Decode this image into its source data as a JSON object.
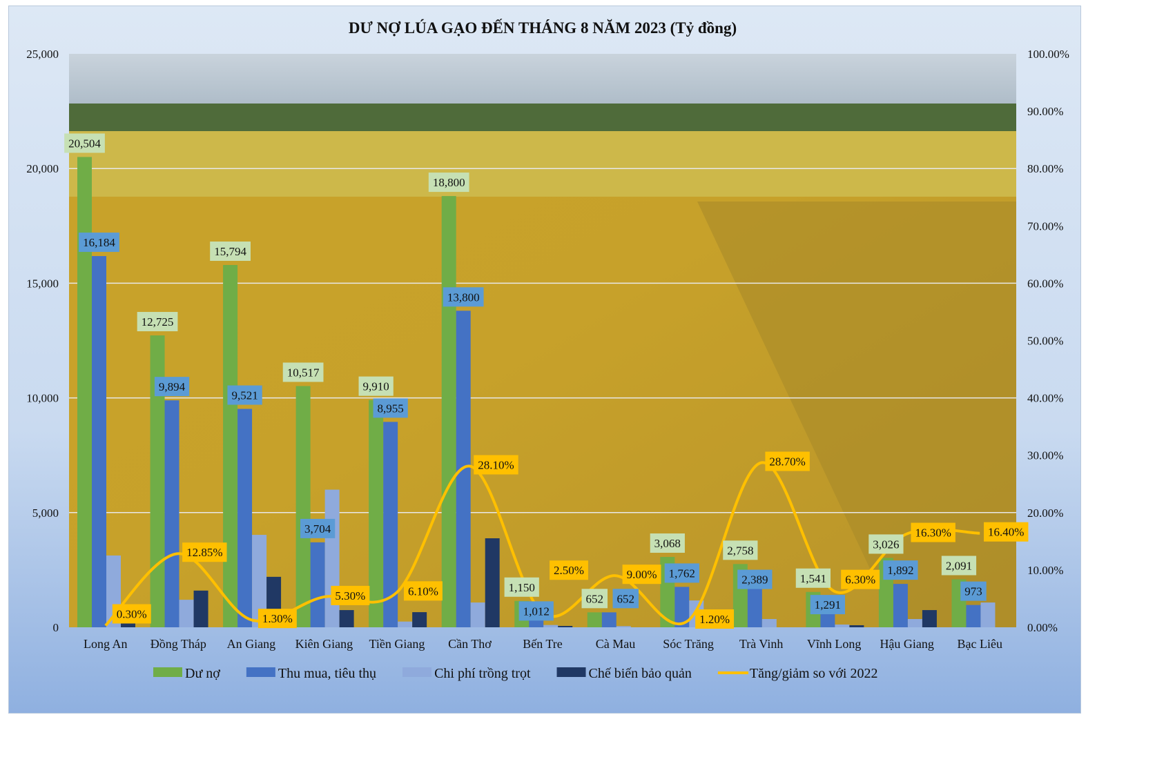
{
  "chart_data": {
    "type": "bar",
    "title": "DƯ NỢ LÚA GẠO ĐẾN THÁNG 8 NĂM 2023 (Tỷ đồng)",
    "categories": [
      "Long An",
      "Đồng Tháp",
      "An Giang",
      "Kiên Giang",
      "Tiền Giang",
      "Cần Thơ",
      "Bến Tre",
      "Cà Mau",
      "Sóc Trăng",
      "Trà Vinh",
      "Vĩnh Long",
      "Hậu Giang",
      "Bạc Liêu"
    ],
    "ylim": [
      0,
      25000
    ],
    "y_ticks": [
      "0",
      "5,000",
      "10,000",
      "15,000",
      "20,000",
      "25,000"
    ],
    "y2lim": [
      0,
      100
    ],
    "y2_ticks": [
      "0.00%",
      "10.00%",
      "20.00%",
      "30.00%",
      "40.00%",
      "50.00%",
      "60.00%",
      "70.00%",
      "80.00%",
      "90.00%",
      "100.00%"
    ],
    "grid": true,
    "legend_position": "bottom",
    "series": [
      {
        "name": "Dư nợ",
        "type": "bar",
        "color": "#70ad47",
        "labeled": true,
        "values": [
          20504,
          12725,
          15794,
          10517,
          9910,
          18800,
          1150,
          652,
          3068,
          2758,
          1541,
          3026,
          2091
        ],
        "labels": [
          "20,504",
          "12,725",
          "15,794",
          "10,517",
          "9,910",
          "18,800",
          "1,150",
          "652",
          "3,068",
          "2,758",
          "1,541",
          "3,026",
          "2,091"
        ]
      },
      {
        "name": "Thu mua, tiêu thụ",
        "type": "bar",
        "color": "#4472c4",
        "labeled": true,
        "values": [
          16184,
          9894,
          9521,
          3704,
          8955,
          13800,
          1012,
          652,
          1762,
          2389,
          1291,
          1892,
          973
        ],
        "labels": [
          "16,184",
          "9,894",
          "9,521",
          "3,704",
          "8,955",
          "13,800",
          "1,012",
          "652",
          "1,762",
          "2,389",
          "1,291",
          "1,892",
          "973"
        ]
      },
      {
        "name": "Chi phí trồng trọt",
        "type": "bar",
        "color": "#8faadc",
        "labeled": false,
        "values": [
          3130,
          1200,
          4030,
          6000,
          250,
          1080,
          100,
          50,
          1170,
          360,
          120,
          360,
          1080
        ]
      },
      {
        "name": "Chế biến bảo quản",
        "type": "bar",
        "color": "#203864",
        "labeled": false,
        "values": [
          300,
          1600,
          2200,
          750,
          660,
          3880,
          60,
          0,
          0,
          0,
          90,
          750,
          0
        ]
      },
      {
        "name": "Tăng/giảm so với 2022",
        "type": "line",
        "axis": "right",
        "color": "#ffc000",
        "values": [
          0.3,
          12.85,
          1.3,
          5.3,
          6.1,
          28.1,
          2.5,
          9.0,
          1.2,
          28.7,
          6.3,
          16.3,
          16.4
        ],
        "labels": [
          "0.30%",
          "12.85%",
          "1.30%",
          "5.30%",
          "6.10%",
          "28.10%",
          "2.50%",
          "9.00%",
          "1.20%",
          "28.70%",
          "6.30%",
          "16.30%",
          "16.40%"
        ]
      }
    ]
  }
}
